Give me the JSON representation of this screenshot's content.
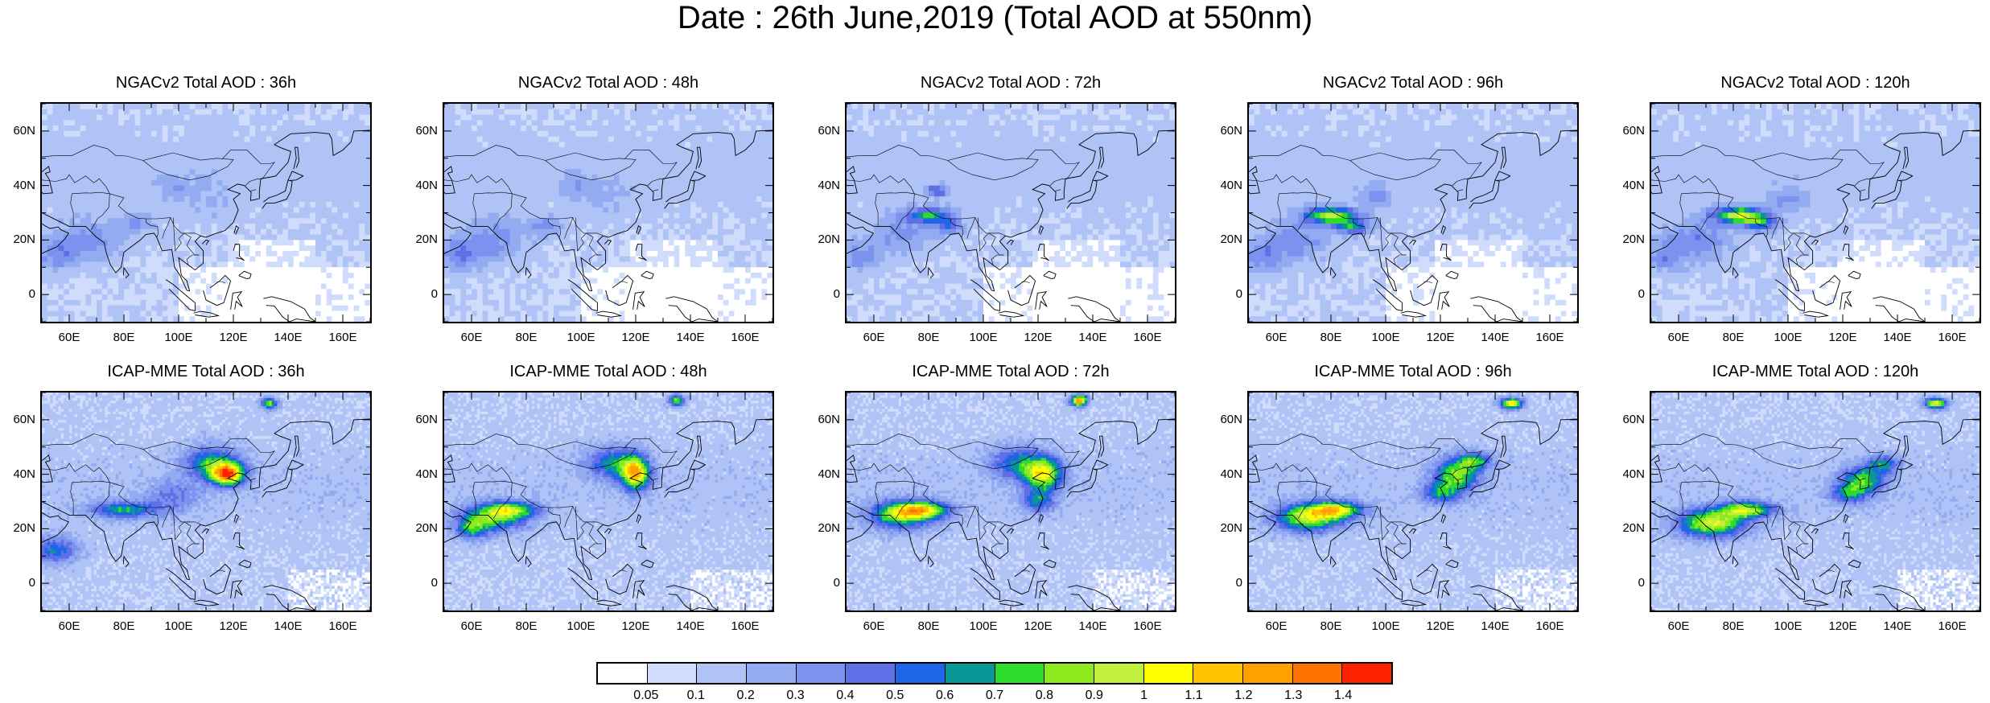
{
  "title": "Date : 26th June,2019 (Total AOD at 550nm)",
  "lat_labels": [
    "60N",
    "40N",
    "20N",
    "0"
  ],
  "lon_labels": [
    "60E",
    "80E",
    "100E",
    "120E",
    "140E",
    "160E"
  ],
  "map_extent": {
    "lon": [
      50,
      170
    ],
    "lat": [
      -10,
      70
    ]
  },
  "panels": [
    {
      "title": "NGACv2 Total AOD : 36h",
      "model": "NGACv2",
      "lead": "36h"
    },
    {
      "title": "NGACv2 Total AOD : 48h",
      "model": "NGACv2",
      "lead": "48h"
    },
    {
      "title": "NGACv2 Total AOD : 72h",
      "model": "NGACv2",
      "lead": "72h"
    },
    {
      "title": "NGACv2 Total AOD : 96h",
      "model": "NGACv2",
      "lead": "96h"
    },
    {
      "title": "NGACv2 Total AOD : 120h",
      "model": "NGACv2",
      "lead": "120h"
    },
    {
      "title": "ICAP-MME Total AOD : 36h",
      "model": "ICAP-MME",
      "lead": "36h"
    },
    {
      "title": "ICAP-MME Total AOD : 48h",
      "model": "ICAP-MME",
      "lead": "48h"
    },
    {
      "title": "ICAP-MME Total AOD : 72h",
      "model": "ICAP-MME",
      "lead": "72h"
    },
    {
      "title": "ICAP-MME Total AOD : 96h",
      "model": "ICAP-MME",
      "lead": "96h"
    },
    {
      "title": "ICAP-MME Total AOD : 120h",
      "model": "ICAP-MME",
      "lead": "120h"
    }
  ],
  "colorbar": {
    "labels": [
      "0.05",
      "0.1",
      "0.2",
      "0.3",
      "0.4",
      "0.5",
      "0.6",
      "0.7",
      "0.8",
      "0.9",
      "1",
      "1.1",
      "1.2",
      "1.3",
      "1.4"
    ],
    "colors": [
      "#ffffff",
      "#d0dcfb",
      "#b0c3f6",
      "#93abf1",
      "#7b92ee",
      "#5f6fe6",
      "#1e66e6",
      "#0b9696",
      "#2ddc2d",
      "#8eea1e",
      "#c0f03c",
      "#ffff00",
      "#ffc300",
      "#ff9f00",
      "#ff7300",
      "#ff2200"
    ]
  }
}
